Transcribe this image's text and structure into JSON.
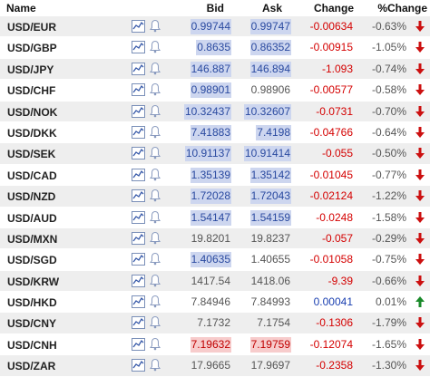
{
  "header": {
    "name": "Name",
    "bid": "Bid",
    "ask": "Ask",
    "change": "Change",
    "pct": "%Change"
  },
  "icons": {
    "chart": "mini-chart-icon",
    "alert": "bell-icon",
    "down": "down-arrow-icon",
    "up": "up-arrow-icon"
  },
  "colors": {
    "negative": "#d40000",
    "positive": "#1a3fb0",
    "highlight_blue": "#cdd6ef",
    "highlight_red": "#f7cccc",
    "row_alt": "#eeeeee"
  },
  "rows": [
    {
      "symbol": "USD/EUR",
      "bid": "0.99744",
      "ask": "0.99747",
      "change": "-0.00634",
      "pct": "-0.63%",
      "dir": "down",
      "bid_hl": "up",
      "ask_hl": "up"
    },
    {
      "symbol": "USD/GBP",
      "bid": "0.8635",
      "ask": "0.86352",
      "change": "-0.00915",
      "pct": "-1.05%",
      "dir": "down",
      "bid_hl": "up",
      "ask_hl": "up"
    },
    {
      "symbol": "USD/JPY",
      "bid": "146.887",
      "ask": "146.894",
      "change": "-1.093",
      "pct": "-0.74%",
      "dir": "down",
      "bid_hl": "up",
      "ask_hl": "up"
    },
    {
      "symbol": "USD/CHF",
      "bid": "0.98901",
      "ask": "0.98906",
      "change": "-0.00577",
      "pct": "-0.58%",
      "dir": "down",
      "bid_hl": "up",
      "ask_hl": "none"
    },
    {
      "symbol": "USD/NOK",
      "bid": "10.32437",
      "ask": "10.32607",
      "change": "-0.0731",
      "pct": "-0.70%",
      "dir": "down",
      "bid_hl": "up",
      "ask_hl": "up"
    },
    {
      "symbol": "USD/DKK",
      "bid": "7.41883",
      "ask": "7.4198",
      "change": "-0.04766",
      "pct": "-0.64%",
      "dir": "down",
      "bid_hl": "up",
      "ask_hl": "up"
    },
    {
      "symbol": "USD/SEK",
      "bid": "10.91137",
      "ask": "10.91414",
      "change": "-0.055",
      "pct": "-0.50%",
      "dir": "down",
      "bid_hl": "up",
      "ask_hl": "up"
    },
    {
      "symbol": "USD/CAD",
      "bid": "1.35139",
      "ask": "1.35142",
      "change": "-0.01045",
      "pct": "-0.77%",
      "dir": "down",
      "bid_hl": "up",
      "ask_hl": "up"
    },
    {
      "symbol": "USD/NZD",
      "bid": "1.72028",
      "ask": "1.72043",
      "change": "-0.02124",
      "pct": "-1.22%",
      "dir": "down",
      "bid_hl": "up",
      "ask_hl": "up"
    },
    {
      "symbol": "USD/AUD",
      "bid": "1.54147",
      "ask": "1.54159",
      "change": "-0.0248",
      "pct": "-1.58%",
      "dir": "down",
      "bid_hl": "up",
      "ask_hl": "up"
    },
    {
      "symbol": "USD/MXN",
      "bid": "19.8201",
      "ask": "19.8237",
      "change": "-0.057",
      "pct": "-0.29%",
      "dir": "down",
      "bid_hl": "none",
      "ask_hl": "none"
    },
    {
      "symbol": "USD/SGD",
      "bid": "1.40635",
      "ask": "1.40655",
      "change": "-0.01058",
      "pct": "-0.75%",
      "dir": "down",
      "bid_hl": "up",
      "ask_hl": "none"
    },
    {
      "symbol": "USD/KRW",
      "bid": "1417.54",
      "ask": "1418.06",
      "change": "-9.39",
      "pct": "-0.66%",
      "dir": "down",
      "bid_hl": "none",
      "ask_hl": "none"
    },
    {
      "symbol": "USD/HKD",
      "bid": "7.84946",
      "ask": "7.84993",
      "change": "0.00041",
      "pct": "0.01%",
      "dir": "up",
      "bid_hl": "none",
      "ask_hl": "none"
    },
    {
      "symbol": "USD/CNY",
      "bid": "7.1732",
      "ask": "7.1754",
      "change": "-0.1306",
      "pct": "-1.79%",
      "dir": "down",
      "bid_hl": "none",
      "ask_hl": "none"
    },
    {
      "symbol": "USD/CNH",
      "bid": "7.19632",
      "ask": "7.19759",
      "change": "-0.12074",
      "pct": "-1.65%",
      "dir": "down",
      "bid_hl": "down",
      "ask_hl": "down"
    },
    {
      "symbol": "USD/ZAR",
      "bid": "17.9665",
      "ask": "17.9697",
      "change": "-0.2358",
      "pct": "-1.30%",
      "dir": "down",
      "bid_hl": "none",
      "ask_hl": "none"
    }
  ]
}
